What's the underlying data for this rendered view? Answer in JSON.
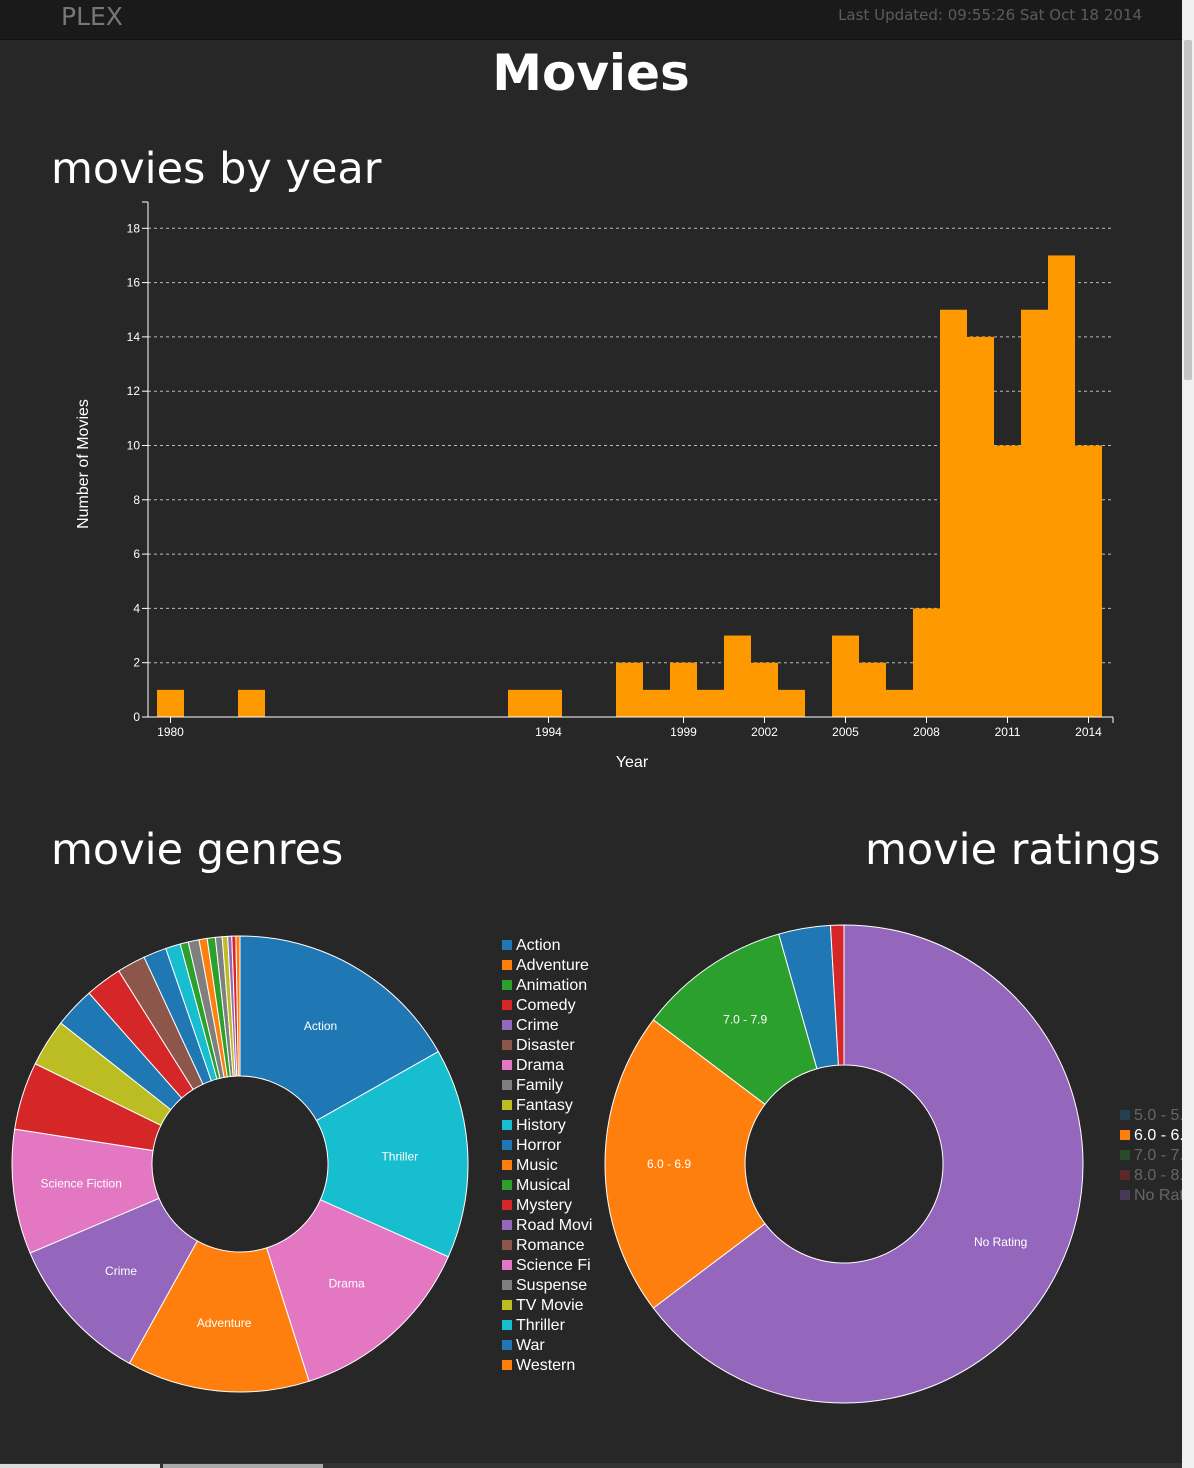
{
  "header": {
    "brand": "PLEX",
    "last_updated": "Last Updated: 09:55:26 Sat Oct 18 2014"
  },
  "page": {
    "title": "Movies",
    "year_section_title": "movies by year",
    "genres_section_title": "movie genres",
    "ratings_section_title": "movie ratings"
  },
  "colors": {
    "bar": "#ff9900",
    "background": "#272727"
  },
  "chart_data": [
    {
      "type": "bar",
      "title": "movies by year",
      "xlabel": "Year",
      "ylabel": "Number of Movies",
      "ylim": [
        0,
        18.6
      ],
      "yticks": [
        0,
        2,
        4,
        6,
        8,
        10,
        12,
        14,
        16,
        18
      ],
      "xlim": [
        1979.5,
        2014.5
      ],
      "xticks": [
        1980,
        1994,
        1999,
        2002,
        2005,
        2008,
        2011,
        2014
      ],
      "grid": true,
      "x": [
        1980,
        1983,
        1993,
        1994,
        1997,
        1998,
        1999,
        2000,
        2001,
        2002,
        2003,
        2005,
        2006,
        2007,
        2008,
        2009,
        2010,
        2011,
        2012,
        2013,
        2014
      ],
      "values": [
        1,
        1,
        1,
        1,
        2,
        1,
        2,
        1,
        3,
        2,
        1,
        3,
        2,
        1,
        4,
        15,
        14,
        10,
        15,
        17,
        10
      ]
    },
    {
      "type": "pie",
      "title": "movie genres",
      "donut": true,
      "legend_position": "right",
      "legend": [
        "Action",
        "Adventure",
        "Animation",
        "Comedy",
        "Crime",
        "Disaster",
        "Drama",
        "Family",
        "Fantasy",
        "History",
        "Horror",
        "Music",
        "Musical",
        "Mystery",
        "Road Movi",
        "Romance",
        "Science Fi",
        "Suspense",
        "TV Movie",
        "Thriller",
        "War",
        "Western"
      ],
      "slices": [
        {
          "label": "Action",
          "value": 17.5,
          "color": "#1f77b4"
        },
        {
          "label": "Thriller",
          "value": 15.5,
          "color": "#17becf"
        },
        {
          "label": "Drama",
          "value": 14,
          "color": "#e377c2"
        },
        {
          "label": "Adventure",
          "value": 13.5,
          "color": "#ff7f0e"
        },
        {
          "label": "Crime",
          "value": 11,
          "color": "#9467bd"
        },
        {
          "label": "Science Fiction",
          "value": 9.2,
          "color": "#e377c2"
        },
        {
          "label": "",
          "value": 5,
          "color": "#d62728"
        },
        {
          "label": "",
          "value": 3.5,
          "color": "#bcbd22"
        },
        {
          "label": "",
          "value": 3,
          "color": "#1f77b4"
        },
        {
          "label": "",
          "value": 2.7,
          "color": "#d62728"
        },
        {
          "label": "",
          "value": 2.1,
          "color": "#8c564b"
        },
        {
          "label": "",
          "value": 1.7,
          "color": "#1f77b4"
        },
        {
          "label": "",
          "value": 1.1,
          "color": "#17becf"
        },
        {
          "label": "",
          "value": 0.6,
          "color": "#2ca02c"
        },
        {
          "label": "",
          "value": 0.8,
          "color": "#7f7f7f"
        },
        {
          "label": "",
          "value": 0.6,
          "color": "#ff7f0e"
        },
        {
          "label": "",
          "value": 0.6,
          "color": "#2ca02c"
        },
        {
          "label": "",
          "value": 0.5,
          "color": "#7f7f7f"
        },
        {
          "label": "",
          "value": 0.4,
          "color": "#bcbd22"
        },
        {
          "label": "",
          "value": 0.3,
          "color": "#9467bd"
        },
        {
          "label": "",
          "value": 0.3,
          "color": "#d62728"
        },
        {
          "label": "",
          "value": 0.3,
          "color": "#ff7f0e"
        }
      ]
    },
    {
      "type": "pie",
      "title": "movie ratings",
      "donut": true,
      "legend_position": "right",
      "legend": [
        "5.0 - 5.",
        "6.0 - 6.",
        "7.0 - 7.",
        "8.0 - 8.",
        "No Rat"
      ],
      "slices": [
        {
          "label": "No Rating",
          "value": 64.7,
          "color": "#9467bd"
        },
        {
          "label": "6.0 - 6.9",
          "value": 20.6,
          "color": "#ff7f0e"
        },
        {
          "label": "7.0 - 7.9",
          "value": 10.3,
          "color": "#2ca02c"
        },
        {
          "label": "",
          "value": 3.5,
          "color": "#1f77b4"
        },
        {
          "label": "",
          "value": 0.9,
          "color": "#d62728"
        }
      ]
    }
  ]
}
